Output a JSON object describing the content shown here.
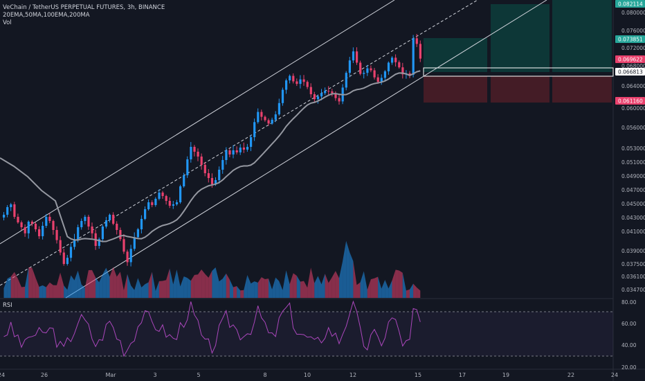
{
  "header": {
    "title": "VeChain / TetherUS PERPETUAL FUTURES, 3h, BINANCE",
    "indicators": "20EMA,50MA,100EMA,200MA",
    "volume_label": "Vol"
  },
  "rsi_panel": {
    "label": "RSI",
    "ticks": [
      "80.00",
      "60.00",
      "40.00",
      "20.00"
    ]
  },
  "colors": {
    "background": "#131722",
    "up": "#2196f3",
    "down": "#e9416d",
    "ma_line": "#9598a1",
    "channel": "#d1d4dc",
    "rsi_line": "#ab47bc",
    "target_zone": "#0d3b3a",
    "stop_zone": "#4a1d27"
  },
  "chart_data": {
    "type": "candlestick",
    "symbol": "VETUSDT",
    "timeframe": "3h",
    "exchange": "BINANCE",
    "price_axis_ticks": [
      "0.080000",
      "0.076000",
      "0.072000",
      "0.068000",
      "0.064000",
      "0.060000",
      "0.056000",
      "0.053000",
      "0.051000",
      "0.049000",
      "0.047000",
      "0.045000",
      "0.043000",
      "0.041000",
      "0.039000",
      "0.037500",
      "0.036100",
      "0.034700"
    ],
    "price_badges": [
      {
        "label": "0.082114",
        "type": "target"
      },
      {
        "label": "0.073851",
        "type": "target"
      },
      {
        "label": "0.069622",
        "type": "last"
      },
      {
        "label": "0.066813",
        "type": "entry"
      },
      {
        "label": "0.061160",
        "type": "stop"
      }
    ],
    "time_axis_labels": [
      "24",
      "26",
      "Mar",
      "3",
      "5",
      "8",
      "10",
      "12",
      "15",
      "17",
      "19",
      "22",
      "24"
    ],
    "ylim": [
      0.0335,
      0.0835
    ],
    "closes": [
      0.0434,
      0.0445,
      0.0449,
      0.0431,
      0.0423,
      0.0416,
      0.0408,
      0.0424,
      0.0421,
      0.0413,
      0.0405,
      0.0418,
      0.0431,
      0.0425,
      0.0412,
      0.0401,
      0.0388,
      0.0375,
      0.0382,
      0.0394,
      0.0402,
      0.0416,
      0.0425,
      0.0431,
      0.0417,
      0.0408,
      0.0395,
      0.0402,
      0.0417,
      0.0426,
      0.0434,
      0.0421,
      0.0412,
      0.0402,
      0.0389,
      0.0377,
      0.0392,
      0.0404,
      0.0413,
      0.0428,
      0.0442,
      0.0452,
      0.0448,
      0.0457,
      0.0466,
      0.0461,
      0.0454,
      0.0447,
      0.0449,
      0.0452,
      0.0475,
      0.0491,
      0.0514,
      0.0532,
      0.0525,
      0.0518,
      0.0506,
      0.0494,
      0.0487,
      0.0478,
      0.0484,
      0.0499,
      0.0513,
      0.0527,
      0.0521,
      0.0527,
      0.0524,
      0.0531,
      0.0528,
      0.0532,
      0.0546,
      0.0571,
      0.0592,
      0.0582,
      0.0575,
      0.0568,
      0.0576,
      0.0587,
      0.0609,
      0.0633,
      0.0651,
      0.066,
      0.0649,
      0.0644,
      0.0653,
      0.0648,
      0.0638,
      0.0625,
      0.0616,
      0.0621,
      0.0627,
      0.0631,
      0.063,
      0.0627,
      0.0618,
      0.0612,
      0.0637,
      0.0666,
      0.0692,
      0.0712,
      0.0687,
      0.0664,
      0.0666,
      0.0675,
      0.0671,
      0.0657,
      0.0648,
      0.0656,
      0.0669,
      0.0687,
      0.0698,
      0.0688,
      0.0677,
      0.0663,
      0.0665,
      0.0662,
      0.0742,
      0.0729,
      0.0696
    ],
    "ma_values_note": "",
    "target_zone": {
      "from": 0.06681,
      "to": 0.08211
    },
    "stop_zone": {
      "from": 0.06116,
      "to": 0.06681
    },
    "rsi_ylim": [
      20,
      80
    ],
    "rsi_bands": [
      70,
      30
    ]
  }
}
